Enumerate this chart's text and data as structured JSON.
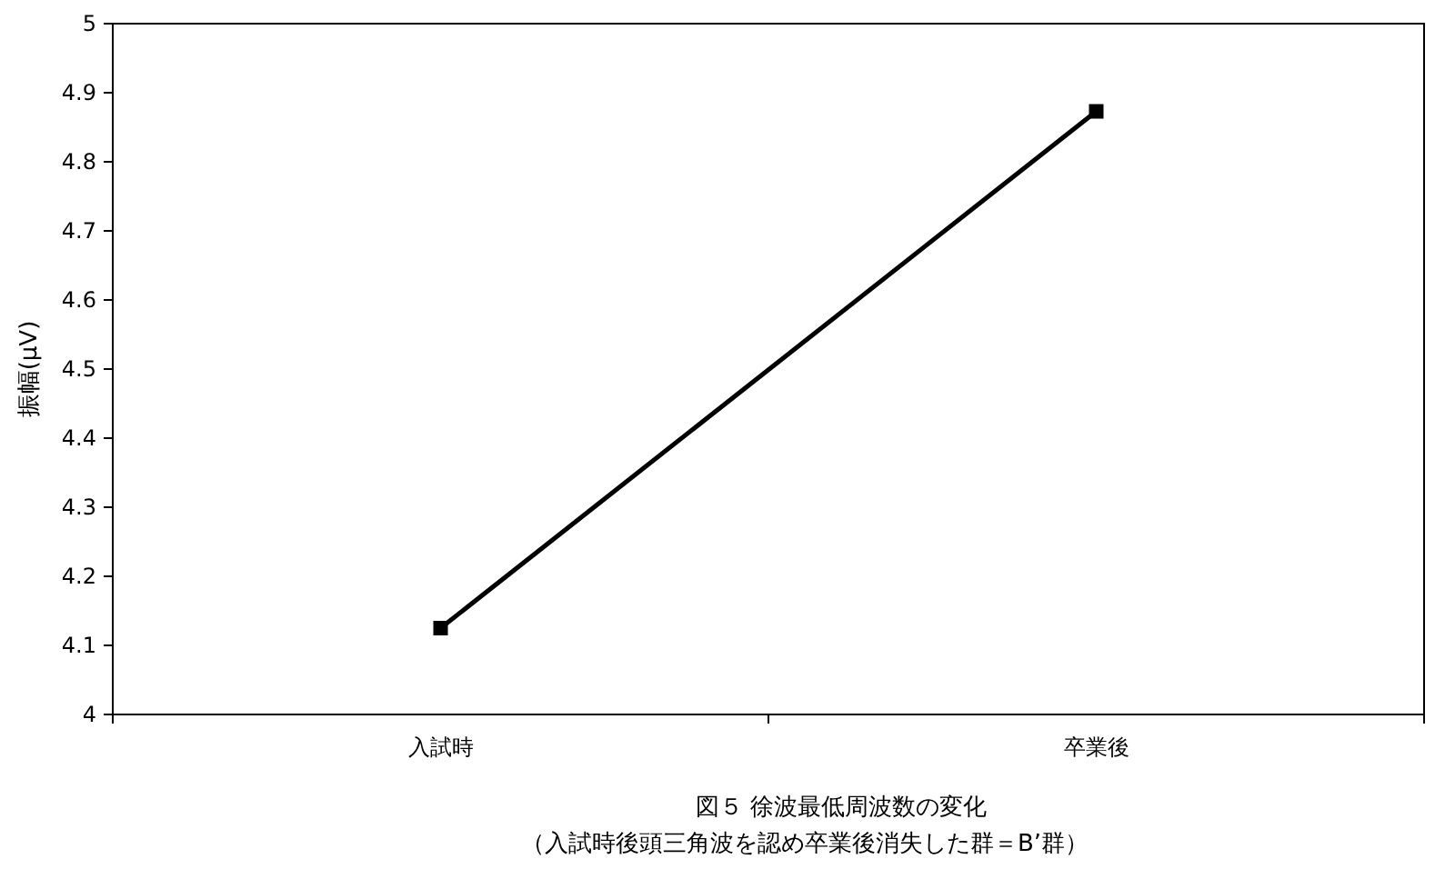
{
  "chart_data": {
    "type": "line",
    "title": "図５ 徐波最低周波数の変化",
    "subtitle": "（入試時後頭三角波を認め卒業後消失した群＝B’群）",
    "ylabel": "振幅(μV)",
    "categories": [
      "入試時",
      "卒業後"
    ],
    "series": [
      {
        "color": "#000000",
        "values": [
          4.125,
          4.873
        ]
      }
    ],
    "ylim": [
      4,
      5
    ],
    "yticks": [
      4,
      4.1,
      4.2,
      4.3,
      4.4,
      4.5,
      4.6,
      4.7,
      4.8,
      4.9,
      5
    ],
    "marker": "square",
    "line_style": "solid",
    "grid": false
  }
}
